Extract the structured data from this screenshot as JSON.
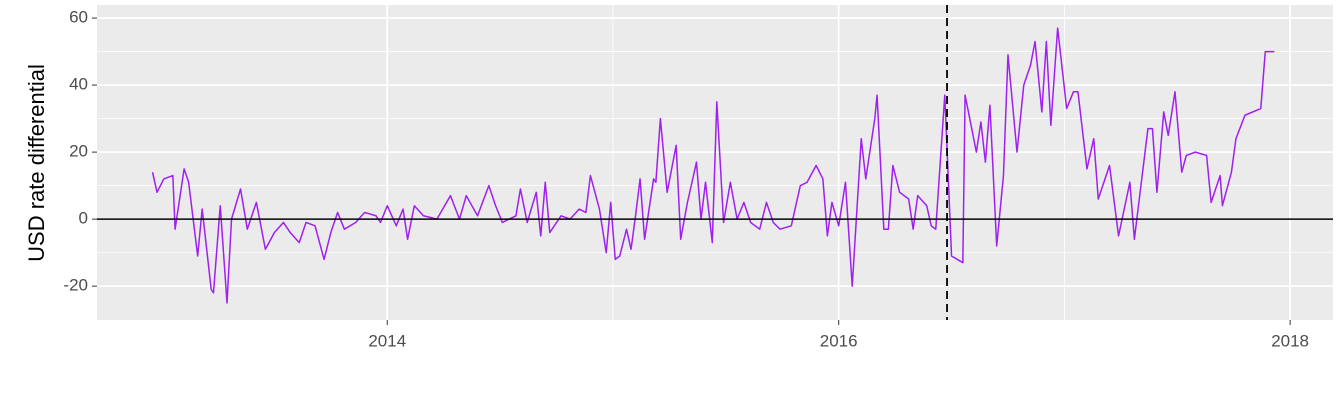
{
  "chart_data": {
    "type": "line",
    "y_label": "USD rate differential",
    "x": [
      2012.96,
      2012.98,
      2013.01,
      2013.05,
      2013.06,
      2013.1,
      2013.12,
      2013.16,
      2013.18,
      2013.22,
      2013.23,
      2013.26,
      2013.29,
      2013.31,
      2013.35,
      2013.38,
      2013.42,
      2013.46,
      2013.5,
      2013.54,
      2013.57,
      2013.61,
      2013.64,
      2013.68,
      2013.72,
      2013.75,
      2013.78,
      2013.81,
      2013.86,
      2013.9,
      2013.95,
      2013.97,
      2014.0,
      2014.04,
      2014.07,
      2014.09,
      2014.12,
      2014.16,
      2014.22,
      2014.28,
      2014.32,
      2014.35,
      2014.4,
      2014.45,
      2014.48,
      2014.51,
      2014.57,
      2014.59,
      2014.62,
      2014.66,
      2014.68,
      2014.7,
      2014.72,
      2014.77,
      2014.81,
      2014.85,
      2014.88,
      2014.9,
      2014.94,
      2014.97,
      2014.99,
      2015.01,
      2015.03,
      2015.06,
      2015.08,
      2015.1,
      2015.12,
      2015.14,
      2015.18,
      2015.19,
      2015.21,
      2015.24,
      2015.28,
      2015.3,
      2015.33,
      2015.37,
      2015.39,
      2015.41,
      2015.44,
      2015.46,
      2015.49,
      2015.52,
      2015.55,
      2015.58,
      2015.61,
      2015.65,
      2015.68,
      2015.71,
      2015.74,
      2015.79,
      2015.83,
      2015.86,
      2015.9,
      2015.93,
      2015.95,
      2015.97,
      2016.0,
      2016.03,
      2016.06,
      2016.1,
      2016.12,
      2016.16,
      2016.17,
      2016.2,
      2016.22,
      2016.24,
      2016.27,
      2016.31,
      2016.33,
      2016.35,
      2016.39,
      2016.41,
      2016.43,
      2016.47,
      2016.5,
      2016.55,
      2016.56,
      2016.61,
      2016.63,
      2016.65,
      2016.67,
      2016.7,
      2016.73,
      2016.75,
      2016.79,
      2016.82,
      2016.85,
      2016.87,
      2016.9,
      2016.92,
      2016.94,
      2016.97,
      2017.01,
      2017.04,
      2017.06,
      2017.1,
      2017.13,
      2017.15,
      2017.2,
      2017.24,
      2017.29,
      2017.31,
      2017.37,
      2017.39,
      2017.41,
      2017.44,
      2017.46,
      2017.49,
      2017.52,
      2017.54,
      2017.58,
      2017.63,
      2017.65,
      2017.69,
      2017.7,
      2017.74,
      2017.76,
      2017.8,
      2017.87,
      2017.89,
      2017.93
    ],
    "series": [
      {
        "color": "#A020F0",
        "values": [
          14,
          8,
          12,
          13,
          -3,
          15,
          11,
          -11,
          3,
          -21,
          -22,
          4,
          -25,
          0,
          9,
          -3,
          5,
          -9,
          -4,
          -1,
          -4,
          -7,
          -1,
          -2,
          -12,
          -4,
          2,
          -3,
          -1,
          2,
          1,
          -1,
          4,
          -2,
          3,
          -6,
          4,
          1,
          0,
          7,
          0,
          7,
          1,
          10,
          4,
          -1,
          1,
          9,
          -1,
          8,
          -5,
          11,
          -4,
          1,
          0,
          3,
          2,
          13,
          3,
          -10,
          5,
          -12,
          -11,
          -3,
          -9,
          1,
          12,
          -6,
          12,
          11,
          30,
          8,
          22,
          -6,
          5,
          17,
          0,
          11,
          -7,
          35,
          -1,
          11,
          0,
          5,
          -1,
          -3,
          5,
          -1,
          -3,
          -2,
          10,
          11,
          16,
          12,
          -5,
          5,
          -2,
          11,
          -20,
          24,
          12,
          30,
          37,
          -3,
          -3,
          16,
          8,
          6,
          -3,
          7,
          4,
          -2,
          -3,
          37,
          -11,
          -13,
          37,
          20,
          29,
          17,
          34,
          -8,
          13,
          49,
          20,
          40,
          46,
          53,
          32,
          53,
          28,
          57,
          33,
          38,
          38,
          15,
          24,
          6,
          16,
          -5,
          11,
          -6,
          27,
          27,
          8,
          32,
          25,
          38,
          14,
          19,
          20,
          19,
          5,
          13,
          4,
          14,
          24,
          31,
          33,
          50,
          50
        ]
      }
    ],
    "xlim": [
      2012.714,
      2018.19
    ],
    "xticks": [
      2014,
      2016,
      2018
    ],
    "ylim": [
      -30.1,
      63.9
    ],
    "yticks": [
      -20,
      0,
      20,
      40,
      60
    ],
    "hline": 0,
    "vline": 2016.48,
    "grid": true,
    "minor_grid": true
  }
}
